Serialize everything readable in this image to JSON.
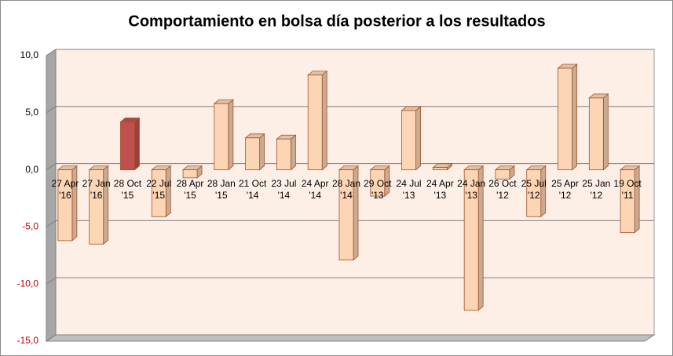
{
  "chart_data": {
    "type": "bar3d",
    "title": "Comportamiento en bolsa día posterior a los resultados",
    "categories": [
      "27 Apr\n'16",
      "27 Jan\n'16",
      "28 Oct\n'15",
      "22 Jul\n'15",
      "28 Apr\n'15",
      "28 Jan\n'15",
      "21 Oct\n'14",
      "23 Jul\n'14",
      "24 Apr\n'14",
      "28 Jan\n'14",
      "29 Oct\n'13",
      "24 Jul\n'13",
      "24 Apr\n'13",
      "24 Jan\n'13",
      "26 Oct\n'12",
      "25 Jul\n'12",
      "25 Apr\n'12",
      "25 Jan\n'12",
      "19 Oct\n'11"
    ],
    "values": [
      -6.2,
      -6.5,
      4.2,
      -4.1,
      -0.7,
      5.8,
      2.8,
      2.7,
      8.3,
      -7.9,
      -2.3,
      5.2,
      0.2,
      -12.3,
      -0.8,
      -4.1,
      8.9,
      6.3,
      -5.5
    ],
    "colors": [
      "#fcd5b5",
      "#fcd5b5",
      "#c0504d",
      "#fcd5b5",
      "#fcd5b5",
      "#fcd5b5",
      "#fcd5b5",
      "#fcd5b5",
      "#fcd5b5",
      "#fcd5b5",
      "#fcd5b5",
      "#fcd5b5",
      "#fcd5b5",
      "#fcd5b5",
      "#fcd5b5",
      "#fcd5b5",
      "#fcd5b5",
      "#fcd5b5",
      "#fcd5b5"
    ],
    "ylim": [
      -15,
      10
    ],
    "yticks": [
      {
        "value": -15,
        "label": "-15,0"
      },
      {
        "value": -10,
        "label": "-10,0"
      },
      {
        "value": -5,
        "label": "-5,0"
      },
      {
        "value": 0,
        "label": "0,0"
      },
      {
        "value": 5,
        "label": "5,0"
      },
      {
        "value": 10,
        "label": "10,0"
      }
    ],
    "negative_tick_color": "#c00000",
    "grid": true
  }
}
